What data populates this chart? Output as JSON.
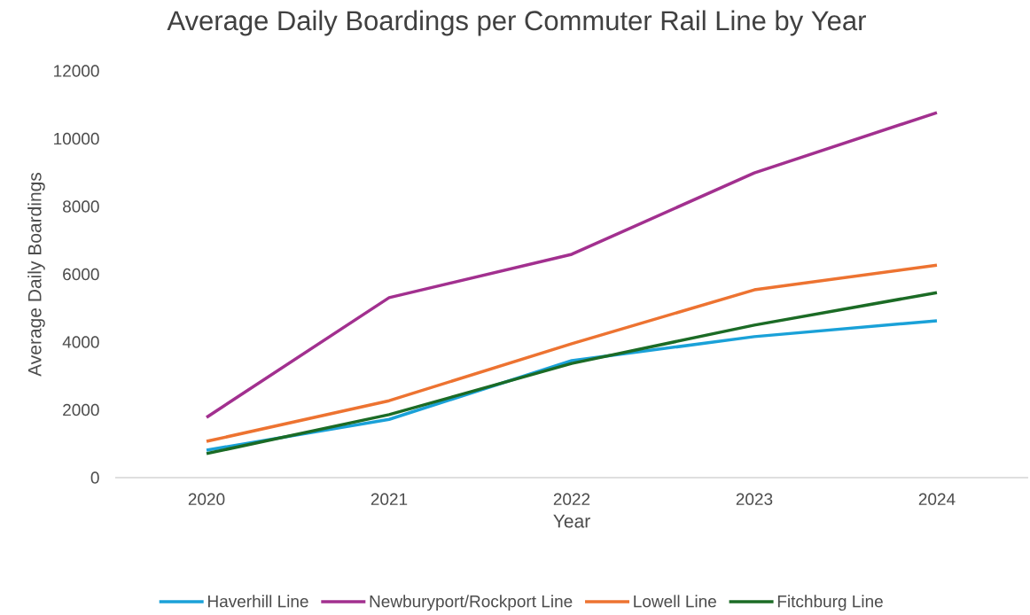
{
  "chart_data": {
    "type": "line",
    "title": "Average Daily Boardings per Commuter Rail Line by Year",
    "xlabel": "Year",
    "ylabel": "Average Daily Boardings",
    "categories": [
      "2020",
      "2021",
      "2022",
      "2023",
      "2024"
    ],
    "series": [
      {
        "name": "Haverhill Line",
        "color": "#1aa1d8",
        "values": [
          810,
          1720,
          3450,
          4160,
          4630
        ]
      },
      {
        "name": "Newburyport/Rockport Line",
        "color": "#a2308f",
        "values": [
          1780,
          5310,
          6590,
          8990,
          10770
        ]
      },
      {
        "name": "Lowell Line",
        "color": "#ed7331",
        "values": [
          1070,
          2270,
          3950,
          5540,
          6270
        ]
      },
      {
        "name": "Fitchburg Line",
        "color": "#1b6b25",
        "values": [
          710,
          1860,
          3370,
          4500,
          5460
        ]
      }
    ],
    "ylim": [
      0,
      12000
    ],
    "yticks": [
      0,
      2000,
      4000,
      6000,
      8000,
      10000,
      12000
    ],
    "grid": false,
    "legend": "bottom"
  }
}
